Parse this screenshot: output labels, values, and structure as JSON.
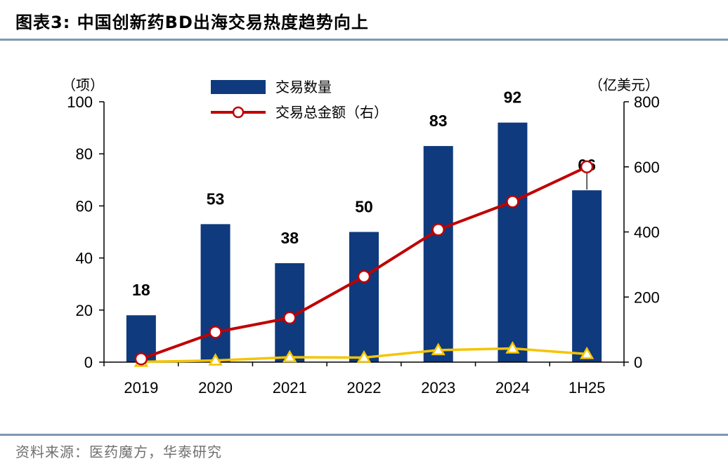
{
  "header": {
    "title": "图表3:  中国创新药BD出海交易热度趋势向上"
  },
  "footer": {
    "source": "资料来源：医药魔方，华泰研究"
  },
  "chart_data": {
    "type": "bar",
    "categories": [
      "2019",
      "2020",
      "2021",
      "2022",
      "2023",
      "2024",
      "1H25"
    ],
    "left_axis": {
      "unit_label": "（项）",
      "ylim": [
        0,
        100
      ],
      "ticks": [
        0,
        20,
        40,
        60,
        80,
        100
      ]
    },
    "right_axis": {
      "unit_label": "（亿美元）",
      "ylim": [
        0,
        800
      ],
      "ticks": [
        0,
        200,
        400,
        600,
        800
      ]
    },
    "series": [
      {
        "name": "交易数量",
        "type": "bar",
        "axis": "left",
        "color": "#0f3a7d",
        "values": [
          18,
          53,
          38,
          50,
          83,
          92,
          66
        ],
        "data_labels": [
          "18",
          "53",
          "38",
          "50",
          "83",
          "92",
          "66"
        ]
      },
      {
        "name": "交易总金额（右）",
        "type": "line",
        "axis": "right",
        "color": "#c00000",
        "marker": "circle",
        "values": [
          10,
          92,
          136,
          263,
          407,
          493,
          600
        ]
      },
      {
        "name": "",
        "type": "line",
        "axis": "right",
        "color": "#f5c400",
        "marker": "triangle",
        "values": [
          1,
          5,
          15,
          14,
          37,
          42,
          25
        ]
      }
    ],
    "legend": {
      "position": "top-center"
    },
    "grid": false
  }
}
